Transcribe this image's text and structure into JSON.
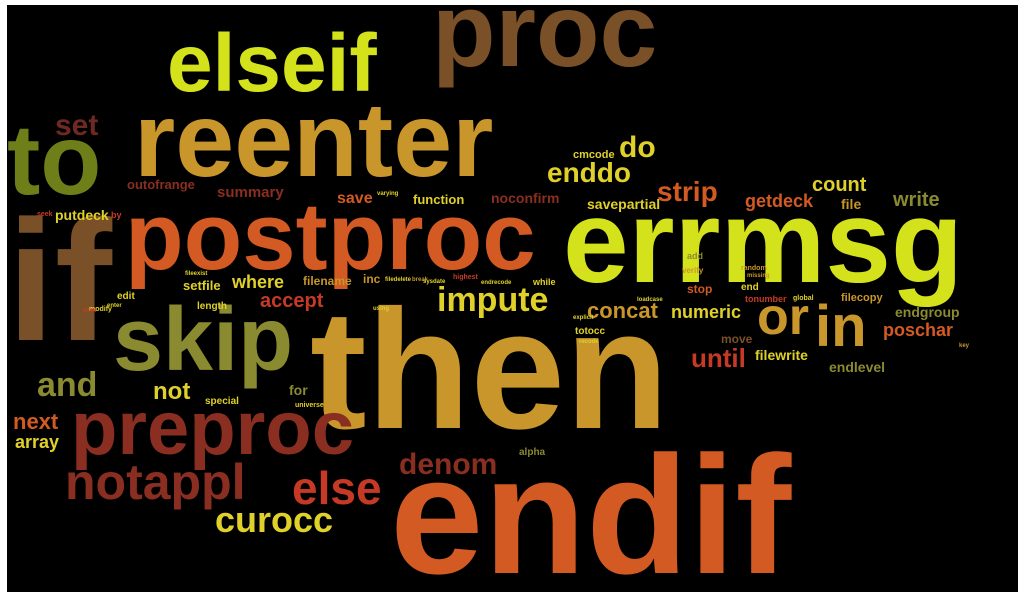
{
  "palette": {
    "background": "#000000",
    "lime": "#d4e21b",
    "yellow": "#e0d12a",
    "gold": "#c8962a",
    "olive": "#8a8a30",
    "green": "#6e7f1a",
    "brown": "#7a5028",
    "orange": "#d35a23",
    "red": "#c63a25",
    "darkred": "#8a2e22",
    "maroon": "#6e2a22"
  },
  "words": {
    "proc": "proc",
    "elseif": "elseif",
    "reenter": "reenter",
    "to": "to",
    "set": "set",
    "errmsg": "errmsg",
    "postproc": "postproc",
    "if": "if",
    "then": "then",
    "endif": "endif",
    "skip": "skip",
    "preproc": "preproc",
    "notappl": "notappl",
    "else": "else",
    "and": "and",
    "denom": "denom",
    "impute": "impute",
    "in": "in",
    "or": "or",
    "strip": "strip",
    "count": "count",
    "write": "write",
    "do": "do",
    "enddo": "enddo",
    "cmcode": "cmcode",
    "getdeck": "getdeck",
    "file": "file",
    "curocc": "curocc",
    "concat": "concat",
    "numeric": "numeric",
    "until": "until",
    "filewrite": "filewrite",
    "endlevel": "endlevel",
    "endgroup": "endgroup",
    "poschar": "poschar",
    "move": "move",
    "filecopy": "filecopy",
    "not": "not",
    "next": "next",
    "array": "array",
    "accept": "accept",
    "where": "where",
    "summary": "summary",
    "outofrange": "outofrange",
    "putdeck": "putdeck",
    "save": "save",
    "function": "function",
    "noconfirm": "noconfirm",
    "savepartial": "savepartial",
    "stop": "stop",
    "setfile": "setfile",
    "filename": "filename",
    "inc": "inc",
    "for": "for",
    "edit": "edit",
    "length": "length",
    "special": "special",
    "universe": "universe",
    "alpha": "alpha",
    "totocc": "totocc",
    "tonumber": "tonumber",
    "end": "end",
    "verify": "verify",
    "random": "random",
    "missing": "missing",
    "add": "add",
    "exit": "exit",
    "explicit": "explicit",
    "while": "while",
    "loadcase": "loadcase",
    "global": "global",
    "highest": "highest",
    "endrecode": "endrecode",
    "recode": "recode",
    "filedelete": "filedelete",
    "break": "break",
    "key": "key",
    "seek": "seek",
    "modify": "modify",
    "by": "by",
    "level": "level",
    "enter": "enter",
    "varying": "varying",
    "sysdate": "sysdate",
    "using": "using",
    "fileexist": "fileexist"
  }
}
